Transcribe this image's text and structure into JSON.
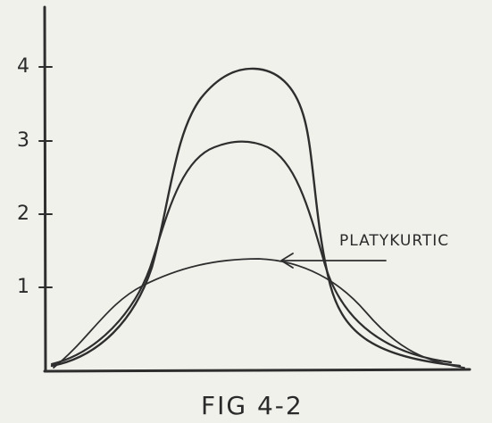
{
  "axis": {
    "ticks": [
      "1",
      "2",
      "3",
      "4"
    ]
  },
  "annotation": "PLATYKURTIC",
  "caption": "FIG 4-2"
}
